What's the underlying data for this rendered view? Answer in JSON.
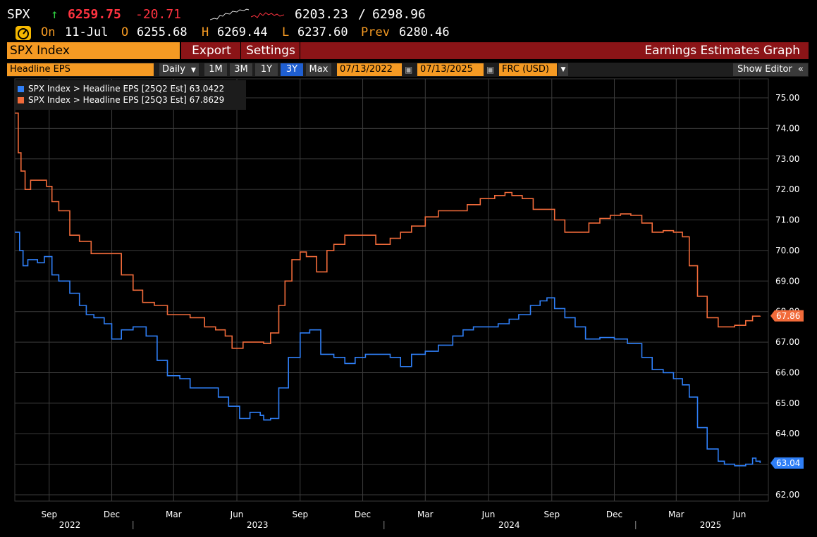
{
  "header": {
    "ticker": "SPX",
    "direction_icon": "up-arrow-icon",
    "direction_glyph": "↑",
    "last": "6259.75",
    "change": "-20.71",
    "range_low": "6203.23",
    "range_sep": "/",
    "range_high": "6298.96",
    "on_label": "On",
    "date": "11-Jul",
    "open_label": "O",
    "open": "6255.68",
    "high_label": "H",
    "high": "6269.44",
    "low_label": "L",
    "low": "6237.60",
    "prev_label": "Prev",
    "prev": "6280.46"
  },
  "menu": {
    "security": "SPX Index",
    "export": "Export",
    "settings": "Settings",
    "title": "Earnings Estimates Graph"
  },
  "toolbar": {
    "field": "Headline EPS",
    "frequency": "Daily",
    "ranges": [
      "1M",
      "3M",
      "1Y",
      "3Y",
      "Max"
    ],
    "active_range": "3Y",
    "start_date": "07/13/2022",
    "end_date": "07/13/2025",
    "currency": "FRC (USD)",
    "show_editor": "Show Editor",
    "collapse_glyph": "«"
  },
  "colors": {
    "blue": "#2f7ff7",
    "orange": "#f26b3a",
    "accent": "#f59a23",
    "banner": "#8b1417"
  },
  "chart_data": {
    "type": "line",
    "title": "Earnings Estimates Graph",
    "ylim": [
      62,
      75.5
    ],
    "yticks": [
      "62.00",
      "63.00",
      "64.00",
      "65.00",
      "66.00",
      "67.00",
      "68.00",
      "69.00",
      "70.00",
      "71.00",
      "72.00",
      "73.00",
      "74.00",
      "75.00"
    ],
    "month_ticks": [
      "Sep",
      "Dec",
      "Mar",
      "Jun",
      "Sep",
      "Dec",
      "Mar",
      "Jun",
      "Sep",
      "Dec",
      "Mar",
      "Jun"
    ],
    "year_ticks": [
      "2022",
      "2023",
      "2024",
      "2025"
    ],
    "grid": true,
    "legend": "top-left",
    "series": [
      {
        "name": "SPX Index > Headline EPS [25Q2 Est]",
        "last_value": "63.0422",
        "end_label": "63.04",
        "color": "#2f7ff7",
        "x": [
          "2022-07-13",
          "2022-07-20",
          "2022-07-25",
          "2022-08-01",
          "2022-08-15",
          "2022-08-25",
          "2022-09-05",
          "2022-09-15",
          "2022-10-01",
          "2022-10-15",
          "2022-10-25",
          "2022-11-05",
          "2022-11-20",
          "2022-12-01",
          "2022-12-15",
          "2023-01-01",
          "2023-01-20",
          "2023-02-05",
          "2023-02-20",
          "2023-03-10",
          "2023-03-25",
          "2023-04-15",
          "2023-05-05",
          "2023-05-20",
          "2023-06-05",
          "2023-06-20",
          "2023-07-05",
          "2023-07-10",
          "2023-07-20",
          "2023-08-01",
          "2023-08-15",
          "2023-09-01",
          "2023-09-15",
          "2023-10-01",
          "2023-10-20",
          "2023-11-05",
          "2023-11-20",
          "2023-12-05",
          "2023-12-20",
          "2024-01-10",
          "2024-01-25",
          "2024-02-10",
          "2024-03-01",
          "2024-03-20",
          "2024-04-10",
          "2024-04-25",
          "2024-05-10",
          "2024-05-25",
          "2024-06-15",
          "2024-07-01",
          "2024-07-15",
          "2024-08-01",
          "2024-08-15",
          "2024-08-25",
          "2024-09-05",
          "2024-09-20",
          "2024-10-05",
          "2024-10-20",
          "2024-11-10",
          "2024-12-01",
          "2024-12-20",
          "2025-01-10",
          "2025-01-25",
          "2025-02-10",
          "2025-02-25",
          "2025-03-10",
          "2025-03-20",
          "2025-04-01",
          "2025-04-15",
          "2025-05-01",
          "2025-05-10",
          "2025-05-25",
          "2025-06-10",
          "2025-06-20",
          "2025-06-25",
          "2025-07-01"
        ],
        "y": [
          70.6,
          70.0,
          69.5,
          69.7,
          69.6,
          69.8,
          69.2,
          69.0,
          68.6,
          68.2,
          67.9,
          67.8,
          67.6,
          67.1,
          67.4,
          67.5,
          67.2,
          66.4,
          65.9,
          65.8,
          65.5,
          65.5,
          65.2,
          64.9,
          64.5,
          64.7,
          64.6,
          64.45,
          64.5,
          65.5,
          66.5,
          67.3,
          67.4,
          66.6,
          66.5,
          66.3,
          66.5,
          66.6,
          66.6,
          66.5,
          66.2,
          66.6,
          66.7,
          66.9,
          67.2,
          67.4,
          67.5,
          67.5,
          67.6,
          67.75,
          67.9,
          68.2,
          68.35,
          68.45,
          68.1,
          67.8,
          67.5,
          67.1,
          67.15,
          67.1,
          66.95,
          66.5,
          66.1,
          66.0,
          65.8,
          65.6,
          65.2,
          64.2,
          63.5,
          63.1,
          63.0,
          62.95,
          63.0,
          63.2,
          63.1,
          63.04
        ]
      },
      {
        "name": "SPX Index > Headline EPS [25Q3 Est]",
        "last_value": "67.8629",
        "end_label": "67.86",
        "color": "#f26b3a",
        "x": [
          "2022-07-13",
          "2022-07-18",
          "2022-07-22",
          "2022-07-28",
          "2022-08-05",
          "2022-08-20",
          "2022-08-28",
          "2022-09-05",
          "2022-09-15",
          "2022-10-01",
          "2022-10-15",
          "2022-11-01",
          "2022-11-15",
          "2022-12-01",
          "2022-12-15",
          "2023-01-01",
          "2023-01-15",
          "2023-02-01",
          "2023-02-20",
          "2023-03-10",
          "2023-03-25",
          "2023-04-15",
          "2023-05-01",
          "2023-05-15",
          "2023-05-25",
          "2023-06-10",
          "2023-06-25",
          "2023-07-10",
          "2023-07-20",
          "2023-08-01",
          "2023-08-10",
          "2023-08-20",
          "2023-09-01",
          "2023-09-10",
          "2023-09-25",
          "2023-10-10",
          "2023-10-20",
          "2023-11-05",
          "2023-11-20",
          "2023-12-05",
          "2023-12-20",
          "2024-01-10",
          "2024-01-25",
          "2024-02-10",
          "2024-03-01",
          "2024-03-20",
          "2024-04-10",
          "2024-05-01",
          "2024-05-20",
          "2024-06-10",
          "2024-06-25",
          "2024-07-05",
          "2024-07-20",
          "2024-08-05",
          "2024-08-20",
          "2024-09-05",
          "2024-09-20",
          "2024-10-10",
          "2024-10-25",
          "2024-11-10",
          "2024-11-25",
          "2024-12-10",
          "2024-12-25",
          "2025-01-10",
          "2025-01-25",
          "2025-02-10",
          "2025-02-25",
          "2025-03-10",
          "2025-03-20",
          "2025-04-01",
          "2025-04-15",
          "2025-05-01",
          "2025-05-15",
          "2025-05-25",
          "2025-06-10",
          "2025-06-20",
          "2025-07-01"
        ],
        "y": [
          74.5,
          73.2,
          72.6,
          72.0,
          72.3,
          72.3,
          72.1,
          71.6,
          71.3,
          70.5,
          70.3,
          69.9,
          69.9,
          69.9,
          69.2,
          68.7,
          68.3,
          68.2,
          67.9,
          67.9,
          67.8,
          67.5,
          67.4,
          67.2,
          66.8,
          67.0,
          67.0,
          66.95,
          67.3,
          68.2,
          69.0,
          69.7,
          69.95,
          69.8,
          69.3,
          70.0,
          70.2,
          70.5,
          70.5,
          70.5,
          70.2,
          70.4,
          70.6,
          70.8,
          71.1,
          71.3,
          71.3,
          71.5,
          71.7,
          71.8,
          71.9,
          71.8,
          71.7,
          71.35,
          71.35,
          71.0,
          70.6,
          70.6,
          70.9,
          71.05,
          71.15,
          71.2,
          71.15,
          70.9,
          70.6,
          70.65,
          70.6,
          70.45,
          69.5,
          68.5,
          67.8,
          67.5,
          67.5,
          67.55,
          67.7,
          67.85,
          67.86
        ]
      }
    ]
  }
}
